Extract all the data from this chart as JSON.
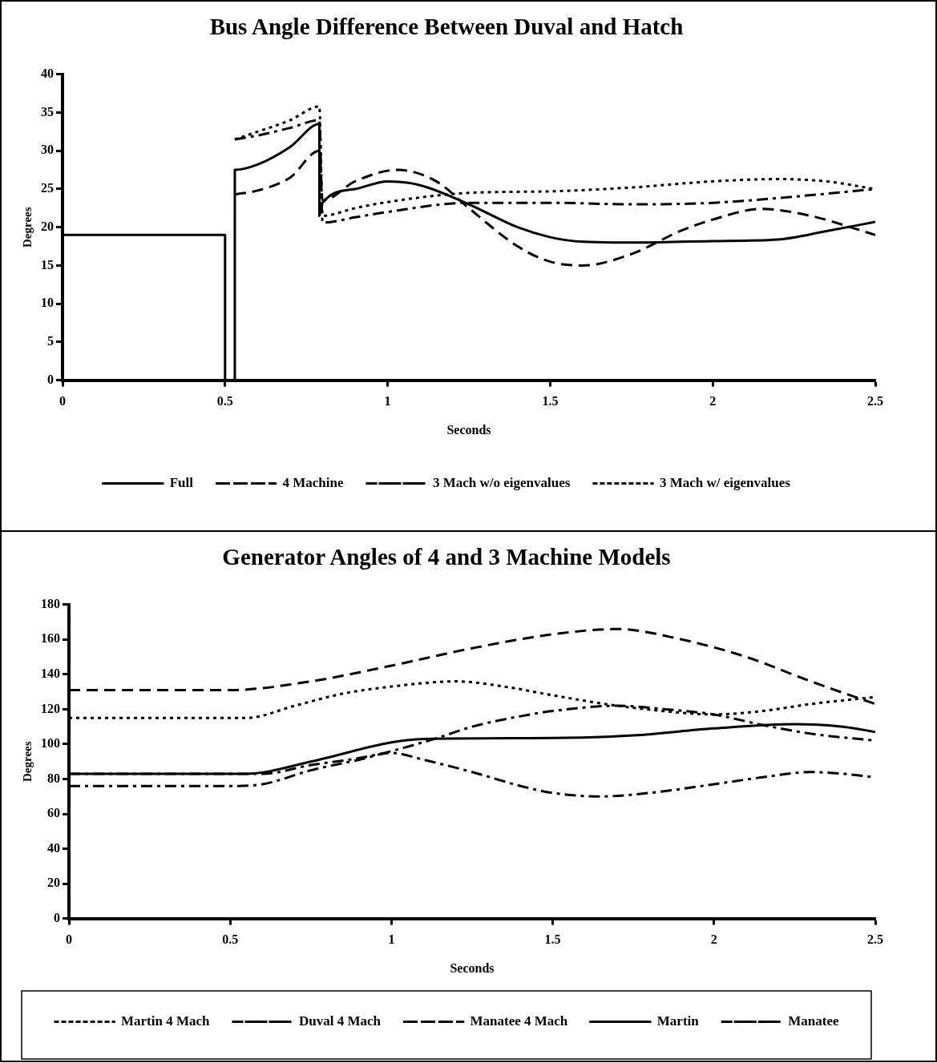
{
  "chart_data": [
    {
      "type": "line",
      "title": "Bus Angle Difference Between Duval and Hatch",
      "xlabel": "Seconds",
      "ylabel": "Degrees",
      "xlim": [
        0,
        2.5
      ],
      "xticks": [
        0,
        0.5,
        1,
        1.5,
        2,
        2.5
      ],
      "ylim": [
        0,
        40
      ],
      "yticks": [
        0,
        5,
        10,
        15,
        20,
        25,
        30,
        35,
        40
      ],
      "grid": false,
      "legend": "bottom",
      "marker": "none",
      "series": [
        {
          "name": "Full",
          "color": "#000000",
          "line_style": "solid",
          "x": [
            0,
            0.5,
            0.5,
            0.53,
            0.53,
            0.6,
            0.7,
            0.79,
            0.79,
            0.8,
            0.9,
            1.0,
            1.1,
            1.25,
            1.4,
            1.5,
            1.6,
            1.75,
            2.0,
            2.2,
            2.35,
            2.5
          ],
          "values": [
            19,
            19,
            0,
            0,
            27.5,
            28.2,
            30.5,
            33.5,
            21.5,
            23.2,
            25,
            26,
            25.5,
            23,
            20,
            18.7,
            18.1,
            18,
            18.2,
            18.4,
            19.5,
            20.7
          ]
        },
        {
          "name": "4 Machine",
          "color": "#000000",
          "line_style": "dashed",
          "x": [
            0.53,
            0.6,
            0.7,
            0.79,
            0.8,
            0.9,
            1.03,
            1.15,
            1.25,
            1.4,
            1.5,
            1.6,
            1.75,
            1.9,
            2.0,
            2.15,
            2.3,
            2.5
          ],
          "values": [
            24.3,
            24.8,
            26.5,
            30,
            23.5,
            26,
            27.5,
            26,
            22.5,
            17.5,
            15.5,
            15,
            16.5,
            19.5,
            21,
            22.4,
            21.5,
            19
          ]
        },
        {
          "name": "3 Mach w/o eigenvalues",
          "color": "#000000",
          "line_style": "dashdot",
          "x": [
            0.53,
            0.6,
            0.7,
            0.79,
            0.8,
            0.9,
            1.0,
            1.25,
            1.5,
            1.75,
            2.0,
            2.25,
            2.5
          ],
          "values": [
            31.5,
            32,
            33,
            34,
            20.6,
            21.3,
            22,
            23.2,
            23.2,
            23,
            23.2,
            24,
            25
          ]
        },
        {
          "name": "3 Mach w/ eigenvalues",
          "color": "#000000",
          "line_style": "dotted",
          "x": [
            0.53,
            0.6,
            0.7,
            0.79,
            0.8,
            0.9,
            1.0,
            1.25,
            1.5,
            1.75,
            2.0,
            2.2,
            2.35,
            2.5
          ],
          "values": [
            31.5,
            32.5,
            34,
            35.8,
            21.5,
            22.5,
            23.3,
            24.5,
            24.7,
            25.2,
            26,
            26.3,
            26,
            25
          ]
        }
      ]
    },
    {
      "type": "line",
      "title": "Generator Angles of 4 and 3 Machine Models",
      "xlabel": "Seconds",
      "ylabel": "Degrees",
      "xlim": [
        0,
        2.5
      ],
      "xticks": [
        0,
        0.5,
        1,
        1.5,
        2,
        2.5
      ],
      "ylim": [
        0,
        180
      ],
      "yticks": [
        0,
        20,
        40,
        60,
        80,
        100,
        120,
        140,
        160,
        180
      ],
      "grid": false,
      "legend": "bottom",
      "marker": "none",
      "series": [
        {
          "name": "Martin 4 Mach",
          "color": "#000000",
          "line_style": "dotted",
          "x": [
            0,
            0.55,
            0.7,
            0.85,
            1.0,
            1.2,
            1.35,
            1.5,
            1.7,
            1.9,
            2.0,
            2.15,
            2.3,
            2.5
          ],
          "values": [
            115,
            115,
            122,
            129,
            133,
            136,
            133,
            128,
            122,
            118,
            117,
            119,
            123,
            127
          ]
        },
        {
          "name": "Duval 4 Mach",
          "color": "#000000",
          "line_style": "dashdot",
          "x": [
            0,
            0.5,
            0.6,
            0.75,
            0.9,
            1.0,
            1.1,
            1.25,
            1.4,
            1.5,
            1.65,
            1.8,
            2.0,
            2.15,
            2.3,
            2.4,
            2.5
          ],
          "values": [
            76,
            76,
            77,
            85,
            91,
            95,
            91,
            84,
            76,
            72,
            70,
            72,
            77,
            81,
            84,
            83,
            81
          ]
        },
        {
          "name": "Manatee 4 Mach",
          "color": "#000000",
          "line_style": "dashed",
          "x": [
            0,
            0.5,
            0.75,
            1.0,
            1.25,
            1.5,
            1.7,
            1.9,
            2.1,
            2.3,
            2.5
          ],
          "values": [
            131,
            131,
            136,
            145,
            155,
            163,
            166,
            160,
            150,
            136,
            123
          ]
        },
        {
          "name": "Martin",
          "color": "#000000",
          "line_style": "solid",
          "x": [
            0,
            0.55,
            0.75,
            1.0,
            1.1,
            1.5,
            1.75,
            2.0,
            2.25,
            2.4,
            2.5
          ],
          "values": [
            83,
            83,
            90,
            101,
            103,
            103.5,
            105,
            109,
            111.5,
            110,
            107
          ]
        },
        {
          "name": "Manatee",
          "color": "#000000",
          "line_style": "dashdot",
          "x": [
            0,
            0.5,
            0.6,
            0.75,
            0.9,
            1.0,
            1.15,
            1.25,
            1.4,
            1.5,
            1.7,
            1.85,
            2.0,
            2.15,
            2.3,
            2.5
          ],
          "values": [
            83,
            83,
            83,
            88,
            92,
            96,
            104,
            110,
            116,
            119,
            122,
            120,
            117,
            111,
            106,
            102
          ]
        }
      ]
    }
  ]
}
